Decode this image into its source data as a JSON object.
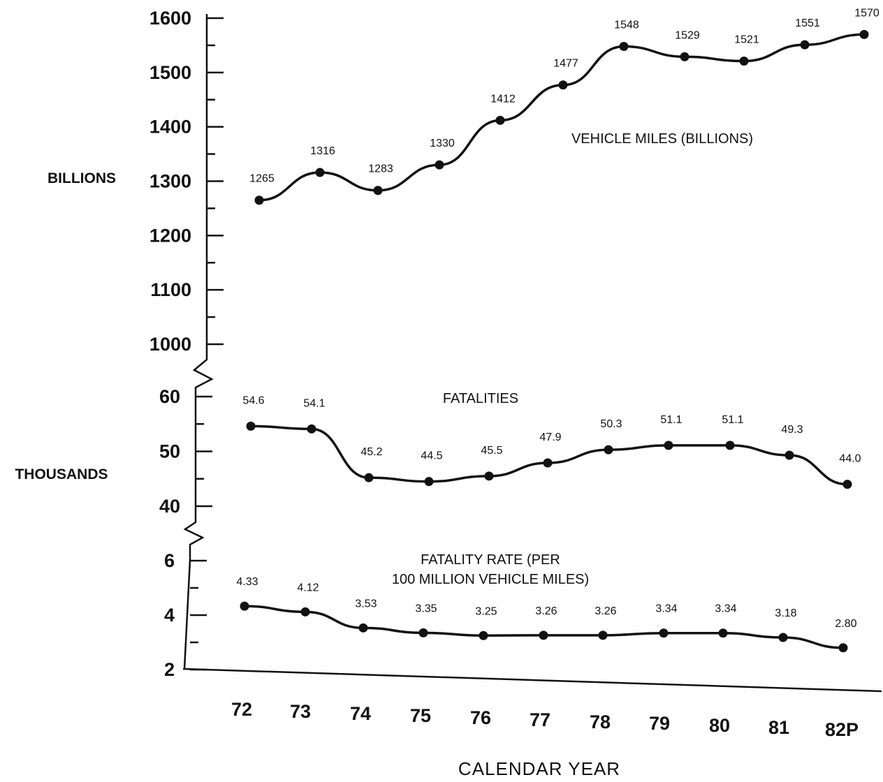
{
  "chart_data": [
    {
      "type": "line",
      "title": "",
      "ylabel": "BILLIONS",
      "ylim": [
        1000,
        1600
      ],
      "yticks": [
        "1000",
        "1100",
        "1200",
        "1300",
        "1400",
        "1500",
        "1600"
      ],
      "series": [
        {
          "name": "VEHICLE MILES (BILLIONS)",
          "values": [
            1265,
            1316,
            1283,
            1330,
            1412,
            1477,
            1548,
            1529,
            1521,
            1551,
            1570
          ],
          "labels": [
            "1265",
            "1316",
            "1283",
            "1330",
            "1412",
            "1477",
            "1548",
            "1529",
            "1521",
            "1551",
            "1570"
          ]
        }
      ]
    },
    {
      "type": "line",
      "title": "",
      "ylabel": "THOUSANDS",
      "ylim": [
        40,
        60
      ],
      "yticks": [
        "40",
        "50",
        "60"
      ],
      "series": [
        {
          "name": "FATALITIES",
          "values": [
            54.6,
            54.1,
            45.2,
            44.5,
            45.5,
            47.9,
            50.3,
            51.1,
            51.1,
            49.3,
            44.0
          ],
          "labels": [
            "54.6",
            "54.1",
            "45.2",
            "44.5",
            "45.5",
            "47.9",
            "50.3",
            "51.1",
            "51.1",
            "49.3",
            "44.0"
          ]
        }
      ]
    },
    {
      "type": "line",
      "title": "",
      "ylabel": "",
      "ylim": [
        2,
        6
      ],
      "yticks": [
        "2",
        "4",
        "6"
      ],
      "series": [
        {
          "name": "FATALITY RATE (PER 100 MILLION VEHICLE MILES)",
          "name_lines": [
            "FATALITY RATE (PER",
            "100 MILLION VEHICLE MILES)"
          ],
          "values": [
            4.33,
            4.12,
            3.53,
            3.35,
            3.25,
            3.26,
            3.26,
            3.34,
            3.34,
            3.18,
            2.8
          ],
          "labels": [
            "4.33",
            "4.12",
            "3.53",
            "3.35",
            "3.25",
            "3.26",
            "3.26",
            "3.34",
            "3.34",
            "3.18",
            "2.80"
          ]
        }
      ]
    }
  ],
  "x_axis": {
    "categories": [
      "72",
      "73",
      "74",
      "75",
      "76",
      "77",
      "78",
      "79",
      "80",
      "81",
      "82P"
    ],
    "title": "CALENDAR YEAR"
  }
}
